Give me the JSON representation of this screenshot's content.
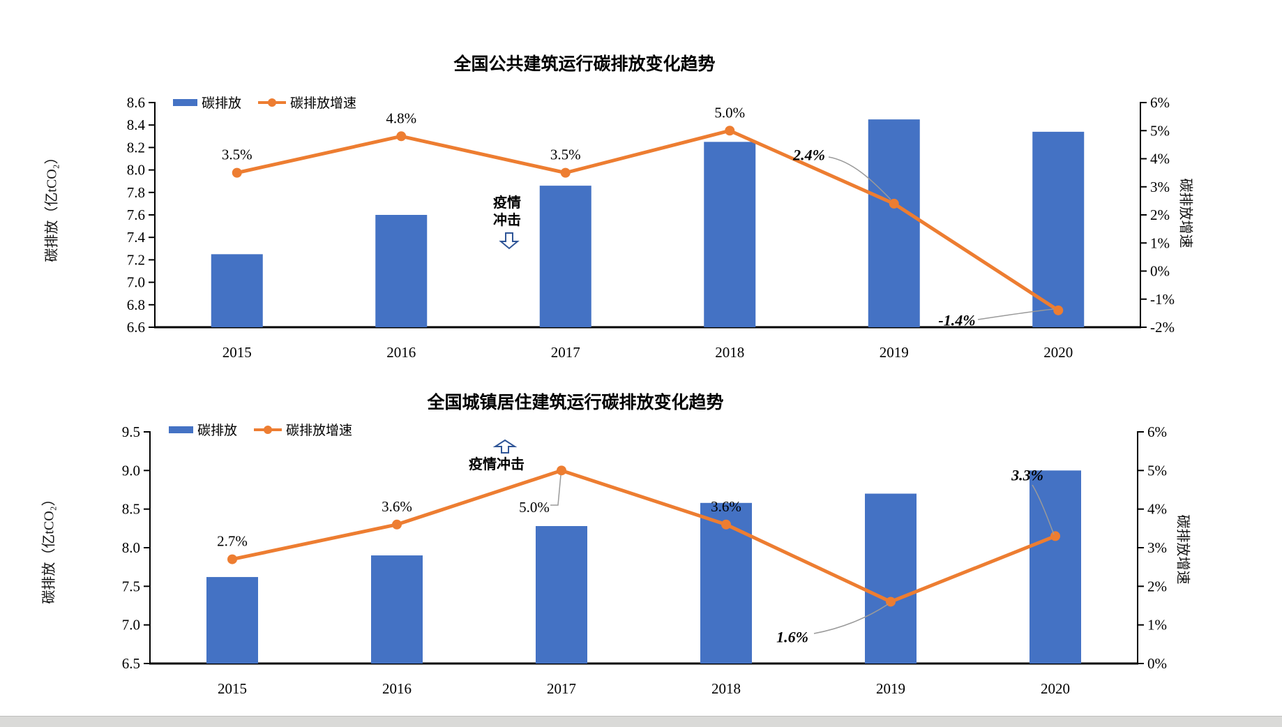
{
  "page": {
    "background": "#ffffff",
    "bottom_bar_color": "#dadad8"
  },
  "colors": {
    "bar": "#4472C4",
    "line": "#ED7D31",
    "red_label": "#FF0000",
    "leader_line": "#9a9a9a",
    "annotation_arrow": "#2F5597",
    "axis": "#000000"
  },
  "chart_data": [
    {
      "type": "bar+line",
      "title": "全国公共建筑运行碳排放变化趋势",
      "categories": [
        "2015",
        "2016",
        "2017",
        "2018",
        "2019",
        "2020"
      ],
      "series": [
        {
          "name": "碳排放",
          "type": "bar",
          "axis": "left",
          "values": [
            7.25,
            7.6,
            7.86,
            8.25,
            8.45,
            8.34
          ]
        },
        {
          "name": "碳排放增速",
          "type": "line",
          "axis": "right",
          "values": [
            3.5,
            4.8,
            3.5,
            5.0,
            2.4,
            -1.4
          ],
          "point_labels": [
            {
              "text": "3.5%",
              "style": "plain"
            },
            {
              "text": "4.8%",
              "style": "plain"
            },
            {
              "text": "3.5%",
              "style": "plain"
            },
            {
              "text": "5.0%",
              "style": "plain"
            },
            {
              "text": "2.4%",
              "style": "red-callout"
            },
            {
              "text": "-1.4%",
              "style": "red-callout"
            }
          ]
        }
      ],
      "left_axis": {
        "label": "碳排放（亿tCO₂）",
        "min": 6.6,
        "max": 8.6,
        "ticks": [
          "8.6",
          "8.4",
          "8.2",
          "8.0",
          "7.8",
          "7.6",
          "7.4",
          "7.2",
          "7.0",
          "6.8",
          "6.6"
        ]
      },
      "right_axis": {
        "label": "碳排放增速",
        "min": -2,
        "max": 6,
        "ticks": [
          "6%",
          "5%",
          "4%",
          "3%",
          "2%",
          "1%",
          "0%",
          "-1%",
          "-2%"
        ]
      },
      "annotation": {
        "lines": [
          "疫情",
          "冲击"
        ],
        "arrow": "down"
      },
      "grid": false,
      "legend_position": "inside-top-left"
    },
    {
      "type": "bar+line",
      "title": "全国城镇居住建筑运行碳排放变化趋势",
      "categories": [
        "2015",
        "2016",
        "2017",
        "2018",
        "2019",
        "2020"
      ],
      "series": [
        {
          "name": "碳排放",
          "type": "bar",
          "axis": "left",
          "values": [
            7.62,
            7.9,
            8.28,
            8.58,
            8.7,
            9.0
          ]
        },
        {
          "name": "碳排放增速",
          "type": "line",
          "axis": "right",
          "values": [
            2.7,
            3.6,
            5.0,
            3.6,
            1.6,
            3.3
          ],
          "point_labels": [
            {
              "text": "2.7%",
              "style": "plain"
            },
            {
              "text": "3.6%",
              "style": "plain"
            },
            {
              "text": "5.0%",
              "style": "black-callout"
            },
            {
              "text": "3.6%",
              "style": "plain"
            },
            {
              "text": "1.6%",
              "style": "red-callout"
            },
            {
              "text": "3.3%",
              "style": "red-callout"
            }
          ]
        }
      ],
      "left_axis": {
        "label": "碳排放（亿tCO₂）",
        "min": 6.5,
        "max": 9.5,
        "ticks": [
          "9.5",
          "9.0",
          "8.5",
          "8.0",
          "7.5",
          "7.0",
          "6.5"
        ]
      },
      "right_axis": {
        "label": "碳排放增速",
        "min": 0,
        "max": 6,
        "ticks": [
          "6%",
          "5%",
          "4%",
          "3%",
          "2%",
          "1%",
          "0%"
        ]
      },
      "annotation": {
        "lines": [
          "疫情冲击"
        ],
        "arrow": "up"
      },
      "grid": false,
      "legend_position": "inside-top-left"
    }
  ]
}
